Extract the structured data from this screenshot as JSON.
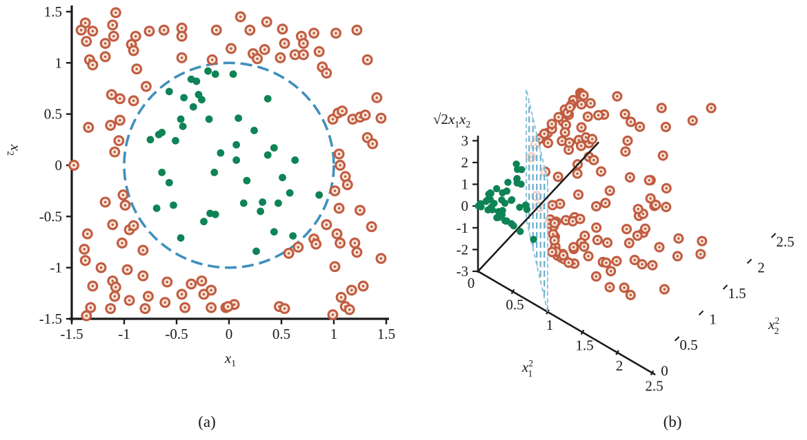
{
  "figure": {
    "caption_a": "(a)",
    "caption_b": "(b)"
  },
  "colors": {
    "inner_class": "#0E8456",
    "outer_ring": "#C15C41",
    "outer_center_fill": "#F7E6DA",
    "decision_boundary": "#3F8FBC",
    "plane_hatch": "#69AFCC",
    "plane_edge": "#8FC4DA",
    "axis": "#1A1A1A",
    "text": "#1A1A1A"
  },
  "chart_data": [
    {
      "type": "scatter",
      "title": "",
      "xlabel": {
        "base": "x",
        "sub": "1"
      },
      "ylabel": {
        "base": "x",
        "sub": "2"
      },
      "xlim": [
        -1.5,
        1.5
      ],
      "ylim": [
        -1.5,
        1.5
      ],
      "xticks": [
        "-1.5",
        "-1",
        "-0.5",
        "0",
        "0.5",
        "1",
        "1.5"
      ],
      "yticks": [
        "1.5",
        "1",
        "0.5",
        "0",
        "-0.5",
        "-1",
        "-1.5"
      ],
      "grid": false,
      "legend": "none",
      "decision_boundary": {
        "shape": "circle",
        "center": [
          0,
          0
        ],
        "radius": 1,
        "style": "dashed"
      },
      "series": [
        {
          "name": "inner-class-points",
          "marker": "filled-dot",
          "color": "#0E8456",
          "points": [
            [
              -0.2,
              0.92
            ],
            [
              -0.36,
              0.84
            ],
            [
              -0.31,
              0.82
            ],
            [
              -0.13,
              0.89
            ],
            [
              -0.57,
              0.72
            ],
            [
              -0.43,
              0.66
            ],
            [
              -0.29,
              0.69
            ],
            [
              -0.26,
              0.64
            ],
            [
              -0.34,
              0.57
            ],
            [
              -0.19,
              0.45
            ],
            [
              -0.46,
              0.45
            ],
            [
              -0.44,
              0.38
            ],
            [
              -0.75,
              0.25
            ],
            [
              -0.67,
              0.3
            ],
            [
              -0.64,
              0.32
            ],
            [
              -0.51,
              0.24
            ],
            [
              -0.08,
              0.12
            ],
            [
              0.04,
              0.89
            ],
            [
              0.37,
              0.65
            ],
            [
              0.09,
              0.46
            ],
            [
              0.24,
              0.34
            ],
            [
              0.07,
              0.2
            ],
            [
              0.43,
              0.17
            ],
            [
              0.37,
              0.1
            ],
            [
              0.63,
              0.05
            ],
            [
              0.07,
              0.05
            ],
            [
              -0.64,
              -0.07
            ],
            [
              -0.57,
              -0.17
            ],
            [
              -0.14,
              -0.07
            ],
            [
              -0.69,
              -0.42
            ],
            [
              -0.53,
              -0.39
            ],
            [
              -0.24,
              -0.55
            ],
            [
              -0.18,
              -0.47
            ],
            [
              -0.13,
              -0.48
            ],
            [
              -0.46,
              -0.71
            ],
            [
              0.17,
              -0.15
            ],
            [
              0.51,
              -0.12
            ],
            [
              0.14,
              -0.37
            ],
            [
              0.32,
              -0.36
            ],
            [
              0.3,
              -0.45
            ],
            [
              0.47,
              -0.37
            ],
            [
              0.58,
              -0.27
            ],
            [
              0.86,
              -0.29
            ],
            [
              0.43,
              -0.65
            ],
            [
              0.61,
              -0.69
            ],
            [
              0.26,
              -0.84
            ]
          ]
        },
        {
          "name": "outer-class-points",
          "marker": "open-ring",
          "color": "#C15C41",
          "points": [
            [
              -1.37,
              1.39
            ],
            [
              -1.41,
              1.32
            ],
            [
              -1.3,
              1.31
            ],
            [
              -1.36,
              1.21
            ],
            [
              -1.33,
              1.03
            ],
            [
              -1.3,
              0.98
            ],
            [
              -1.18,
              1.19
            ],
            [
              -1.18,
              1.06
            ],
            [
              -1.08,
              1.49
            ],
            [
              -1.11,
              1.37
            ],
            [
              -1.1,
              1.26
            ],
            [
              -0.89,
              1.26
            ],
            [
              -0.93,
              1.18
            ],
            [
              -0.91,
              1.12
            ],
            [
              -0.76,
              1.31
            ],
            [
              -0.62,
              1.32
            ],
            [
              -0.45,
              1.34
            ],
            [
              -0.45,
              1.26
            ],
            [
              -0.12,
              1.32
            ],
            [
              -0.45,
              1.05
            ],
            [
              -0.16,
              1.03
            ],
            [
              -0.88,
              0.94
            ],
            [
              -0.79,
              0.77
            ],
            [
              -1.12,
              0.69
            ],
            [
              -1.04,
              0.65
            ],
            [
              -0.91,
              0.63
            ],
            [
              -1.34,
              0.37
            ],
            [
              -1.13,
              0.39
            ],
            [
              -1.04,
              0.44
            ],
            [
              -1.05,
              0.24
            ],
            [
              -1.09,
              0.13
            ],
            [
              -1.48,
              0.0
            ],
            [
              0.11,
              1.45
            ],
            [
              0.2,
              1.32
            ],
            [
              0.36,
              1.4
            ],
            [
              0.51,
              1.33
            ],
            [
              0.69,
              1.26
            ],
            [
              0.81,
              1.29
            ],
            [
              1.02,
              1.29
            ],
            [
              1.22,
              1.32
            ],
            [
              0.02,
              1.14
            ],
            [
              0.23,
              1.09
            ],
            [
              0.34,
              1.13
            ],
            [
              0.27,
              1.04
            ],
            [
              0.53,
              1.19
            ],
            [
              0.49,
              1.05
            ],
            [
              0.63,
              1.08
            ],
            [
              0.71,
              1.08
            ],
            [
              0.71,
              1.19
            ],
            [
              0.86,
              1.11
            ],
            [
              0.89,
              0.96
            ],
            [
              0.93,
              0.9
            ],
            [
              1.32,
              1.03
            ],
            [
              1.41,
              0.66
            ],
            [
              0.99,
              0.45
            ],
            [
              1.04,
              0.51
            ],
            [
              1.08,
              0.53
            ],
            [
              1.18,
              0.45
            ],
            [
              1.25,
              0.47
            ],
            [
              1.3,
              0.49
            ],
            [
              1.45,
              0.46
            ],
            [
              1.32,
              0.27
            ],
            [
              1.37,
              0.21
            ],
            [
              1.05,
              0.11
            ],
            [
              1.06,
              0.0
            ],
            [
              -1.18,
              -0.36
            ],
            [
              -1.01,
              -0.29
            ],
            [
              -0.99,
              -0.39
            ],
            [
              -1.35,
              -0.67
            ],
            [
              -1.11,
              -0.58
            ],
            [
              -0.95,
              -0.63
            ],
            [
              -0.91,
              -0.59
            ],
            [
              -1.38,
              -0.82
            ],
            [
              -1.37,
              -0.93
            ],
            [
              -1.02,
              -0.76
            ],
            [
              -0.82,
              -0.83
            ],
            [
              -1.22,
              -1.0
            ],
            [
              -0.97,
              -1.02
            ],
            [
              -1.3,
              -1.18
            ],
            [
              -1.11,
              -1.13
            ],
            [
              -1.08,
              -1.19
            ],
            [
              -1.09,
              -1.28
            ],
            [
              -0.82,
              -1.08
            ],
            [
              -0.95,
              -1.32
            ],
            [
              -0.77,
              -1.28
            ],
            [
              -0.8,
              -1.4
            ],
            [
              -1.32,
              -1.39
            ],
            [
              -1.36,
              -1.47
            ],
            [
              -1.13,
              -1.4
            ],
            [
              -0.59,
              -1.14
            ],
            [
              -0.45,
              -1.26
            ],
            [
              -0.61,
              -1.34
            ],
            [
              -0.42,
              -1.39
            ],
            [
              -0.36,
              -1.16
            ],
            [
              -0.26,
              -1.13
            ],
            [
              -0.17,
              -1.22
            ],
            [
              -0.24,
              -1.26
            ],
            [
              -0.17,
              -1.39
            ],
            [
              -0.03,
              -1.39
            ],
            [
              1.11,
              -0.11
            ],
            [
              1.13,
              -0.19
            ],
            [
              1.01,
              -0.25
            ],
            [
              1.05,
              -0.42
            ],
            [
              1.25,
              -0.44
            ],
            [
              1.36,
              -0.6
            ],
            [
              0.93,
              -0.58
            ],
            [
              1.03,
              -0.67
            ],
            [
              1.06,
              -0.76
            ],
            [
              1.2,
              -0.76
            ],
            [
              1.22,
              -0.85
            ],
            [
              1.45,
              -0.91
            ],
            [
              0.81,
              -0.72
            ],
            [
              0.83,
              -0.77
            ],
            [
              0.66,
              -0.8
            ],
            [
              0.57,
              -0.86
            ],
            [
              1.01,
              -0.99
            ],
            [
              1.28,
              -1.18
            ],
            [
              1.17,
              -1.22
            ],
            [
              1.07,
              -1.29
            ],
            [
              1.11,
              -1.38
            ],
            [
              1.15,
              -1.41
            ],
            [
              0.99,
              -1.46
            ],
            [
              0.48,
              -1.38
            ],
            [
              0.53,
              -1.4
            ],
            [
              0.05,
              -1.36
            ],
            [
              -0.01,
              -1.38
            ]
          ]
        }
      ]
    },
    {
      "type": "scatter3d",
      "title": "",
      "xlabel": {
        "base": "x",
        "sub": "1",
        "sup": "2"
      },
      "ylabel": {
        "base": "x",
        "sub": "2",
        "sup": "2"
      },
      "zlabel": {
        "rich": [
          {
            "t": "√2"
          },
          {
            "t": "x",
            "sub": "1",
            "italic": true
          },
          {
            "t": "x",
            "sub": "2",
            "italic": true
          }
        ]
      },
      "xlim": [
        0,
        2.5
      ],
      "ylim": [
        0,
        2.5
      ],
      "zlim": [
        -3,
        3
      ],
      "xticks": [
        "0",
        "0.5",
        "1",
        "1.5",
        "2",
        "2.5"
      ],
      "yticks": [
        "0",
        "0.5",
        "1",
        "1.5",
        "2",
        "2.5"
      ],
      "zticks": [
        "3",
        "2",
        "1",
        "0",
        "-1",
        "-2",
        "-3"
      ],
      "grid": false,
      "legend": "none",
      "separating_plane": {
        "equation": "x1² + x2² = 1",
        "corners_xyz": [
          [
            1,
            0,
            3
          ],
          [
            1,
            0,
            -3
          ],
          [
            0,
            1,
            -3
          ],
          [
            0,
            1,
            3
          ]
        ],
        "style": "dashed-hatched"
      },
      "points_source": "derived from panel (a) series via kernel mapping",
      "points_transform": {
        "X": "x1^2",
        "Y": "x2^2",
        "Z": "sqrt(2)*x1*x2"
      }
    }
  ]
}
